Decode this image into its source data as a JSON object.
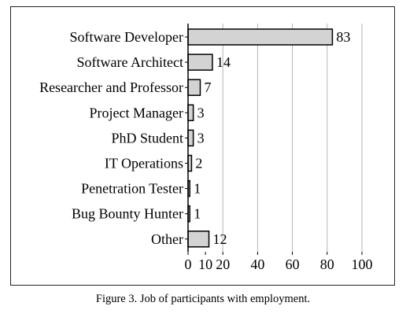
{
  "caption": "Figure 3.  Job of participants with employment.",
  "chart_data": {
    "type": "bar",
    "orientation": "horizontal",
    "title": "",
    "xlabel": "",
    "ylabel": "",
    "categories": [
      "Software Developer",
      "Software Architect",
      "Researcher and Professor",
      "Project Manager",
      "PhD Student",
      "IT Operations",
      "Penetration Tester",
      "Bug Bounty Hunter",
      "Other"
    ],
    "values": [
      83,
      14,
      7,
      3,
      3,
      2,
      1,
      1,
      12
    ],
    "xlim": [
      0,
      100
    ],
    "xticks": [
      "0",
      "10",
      "20",
      "40",
      "60",
      "80",
      "100"
    ],
    "xtick_values": [
      0,
      10,
      20,
      40,
      60,
      80,
      100
    ],
    "grid": true,
    "legend": "none",
    "colors": {
      "bar_fill": "#d3d3d3",
      "bar_stroke": "#000000",
      "grid": "#b5b5b5"
    }
  }
}
